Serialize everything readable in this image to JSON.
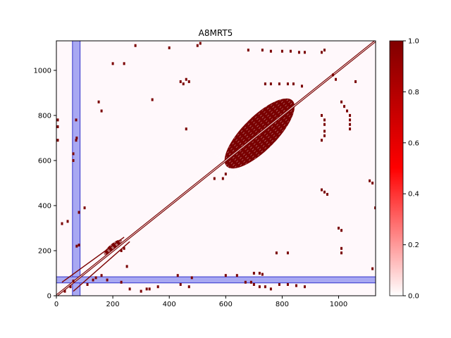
{
  "chart_data": {
    "type": "heatmap",
    "title": "A8MRT5",
    "xlabel": "",
    "ylabel": "",
    "xlim": [
      0,
      1131
    ],
    "ylim": [
      0,
      1131
    ],
    "x_ticks": [
      0,
      200,
      400,
      600,
      800,
      1000
    ],
    "y_ticks": [
      0,
      200,
      400,
      600,
      800,
      1000
    ],
    "colorbar": {
      "range": [
        0,
        1
      ],
      "ticks": [
        "0.0",
        "0.2",
        "0.4",
        "0.6",
        "0.8",
        "1.0"
      ],
      "colormap": [
        "#ffffff",
        "#ff0000",
        "#800000"
      ]
    },
    "highlight_bands": [
      {
        "axis": "x",
        "start": 57,
        "end": 84
      },
      {
        "axis": "y",
        "start": 57,
        "end": 84
      }
    ],
    "contact_segments": [
      {
        "from": [
          0,
          0
        ],
        "to": [
          1131,
          1131
        ],
        "kind": "diagonal"
      },
      {
        "from": [
          60,
          20
        ],
        "to": [
          260,
          240
        ],
        "kind": "band"
      },
      {
        "from": [
          20,
          60
        ],
        "to": [
          240,
          260
        ],
        "kind": "band"
      }
    ],
    "contact_regions": [
      {
        "center": [
          720,
          720
        ],
        "width": 330,
        "height": 150,
        "angle": 45,
        "value": 1.0
      },
      {
        "center": [
          200,
          215
        ],
        "width": 80,
        "height": 30,
        "angle": 40,
        "value": 1.0
      }
    ],
    "contact_points": [
      [
        70,
        780
      ],
      [
        72,
        700
      ],
      [
        70,
        690
      ],
      [
        60,
        630
      ],
      [
        60,
        600
      ],
      [
        5,
        780
      ],
      [
        5,
        750
      ],
      [
        5,
        690
      ],
      [
        80,
        370
      ],
      [
        100,
        390
      ],
      [
        20,
        320
      ],
      [
        40,
        330
      ],
      [
        80,
        225
      ],
      [
        72,
        220
      ],
      [
        60,
        65
      ],
      [
        50,
        40
      ],
      [
        30,
        20
      ],
      [
        140,
        80
      ],
      [
        160,
        90
      ],
      [
        180,
        70
      ],
      [
        230,
        60
      ],
      [
        260,
        30
      ],
      [
        300,
        20
      ],
      [
        320,
        30
      ],
      [
        200,
        1030
      ],
      [
        240,
        1030
      ],
      [
        280,
        1110
      ],
      [
        400,
        1100
      ],
      [
        460,
        960
      ],
      [
        470,
        950
      ],
      [
        460,
        740
      ],
      [
        340,
        870
      ],
      [
        500,
        1110
      ],
      [
        510,
        1120
      ],
      [
        680,
        1090
      ],
      [
        730,
        1090
      ],
      [
        760,
        1085
      ],
      [
        800,
        1085
      ],
      [
        830,
        1085
      ],
      [
        860,
        1080
      ],
      [
        880,
        1080
      ],
      [
        940,
        1080
      ],
      [
        950,
        1090
      ],
      [
        740,
        940
      ],
      [
        760,
        940
      ],
      [
        790,
        940
      ],
      [
        820,
        940
      ],
      [
        840,
        940
      ],
      [
        870,
        930
      ],
      [
        980,
        980
      ],
      [
        990,
        960
      ],
      [
        940,
        800
      ],
      [
        950,
        780
      ],
      [
        950,
        760
      ],
      [
        950,
        730
      ],
      [
        950,
        710
      ],
      [
        940,
        690
      ],
      [
        1010,
        860
      ],
      [
        1020,
        840
      ],
      [
        1030,
        820
      ],
      [
        1040,
        800
      ],
      [
        1040,
        780
      ],
      [
        1040,
        760
      ],
      [
        1040,
        740
      ],
      [
        1060,
        950
      ],
      [
        1120,
        500
      ],
      [
        1110,
        510
      ],
      [
        940,
        470
      ],
      [
        950,
        460
      ],
      [
        960,
        450
      ],
      [
        1000,
        300
      ],
      [
        1010,
        290
      ],
      [
        1010,
        210
      ],
      [
        1010,
        190
      ],
      [
        1130,
        390
      ],
      [
        1120,
        120
      ],
      [
        780,
        190
      ],
      [
        820,
        190
      ],
      [
        150,
        860
      ],
      [
        160,
        820
      ],
      [
        250,
        130
      ],
      [
        330,
        30
      ],
      [
        360,
        40
      ],
      [
        240,
        210
      ],
      [
        230,
        200
      ],
      [
        440,
        950
      ],
      [
        450,
        940
      ],
      [
        600,
        540
      ],
      [
        590,
        520
      ],
      [
        560,
        520
      ],
      [
        670,
        60
      ],
      [
        690,
        60
      ],
      [
        700,
        50
      ],
      [
        720,
        40
      ],
      [
        740,
        40
      ],
      [
        760,
        30
      ],
      [
        790,
        50
      ],
      [
        820,
        50
      ],
      [
        850,
        45
      ],
      [
        880,
        40
      ],
      [
        720,
        100
      ],
      [
        730,
        95
      ],
      [
        700,
        100
      ],
      [
        640,
        90
      ],
      [
        600,
        90
      ],
      [
        470,
        40
      ],
      [
        440,
        50
      ],
      [
        480,
        80
      ],
      [
        430,
        90
      ],
      [
        110,
        50
      ],
      [
        130,
        70
      ]
    ]
  }
}
